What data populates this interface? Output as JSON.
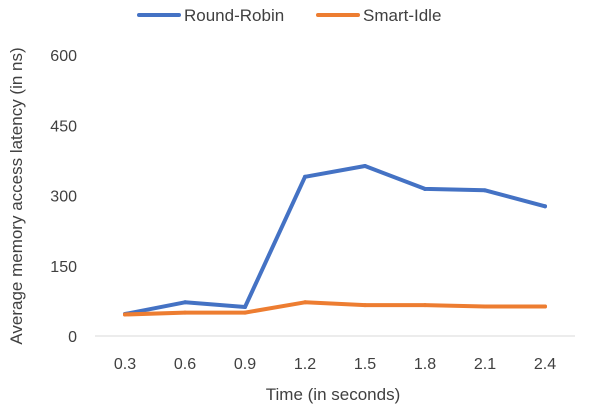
{
  "chart_data": {
    "type": "line",
    "title": "",
    "xlabel": "Time (in seconds)",
    "ylabel": "Average memory access latency (in ns)",
    "categories": [
      "0.3",
      "0.6",
      "0.9",
      "1.2",
      "1.5",
      "1.8",
      "2.1",
      "2.4"
    ],
    "y_ticks": [
      "0",
      "150",
      "300",
      "450",
      "600"
    ],
    "ylim": [
      0,
      600
    ],
    "grid": false,
    "legend_position": "top",
    "series": [
      {
        "name": "Round-Robin",
        "color": "#4472C4",
        "values": [
          47,
          72,
          62,
          340,
          363,
          314,
          311,
          277
        ]
      },
      {
        "name": "Smart-Idle",
        "color": "#ED7D31",
        "values": [
          46,
          50,
          50,
          72,
          66,
          66,
          63,
          63
        ]
      }
    ]
  }
}
